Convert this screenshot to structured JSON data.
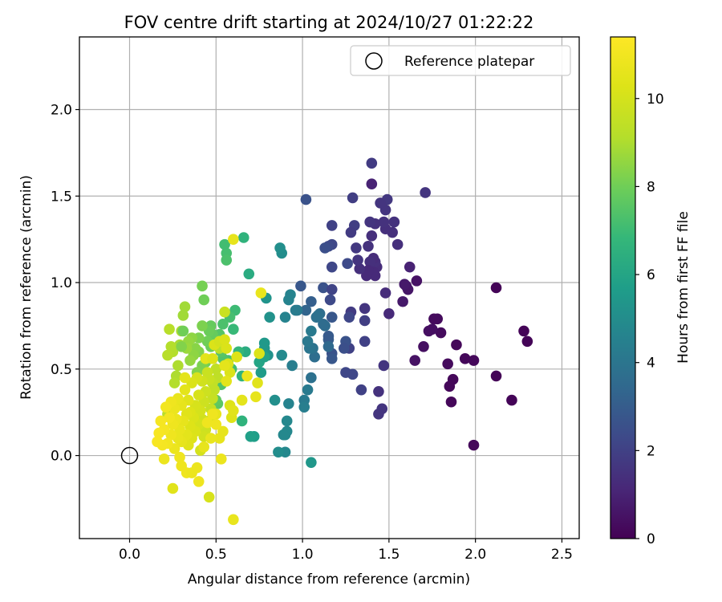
{
  "chart_data": {
    "type": "scatter",
    "title": "FOV centre drift starting at 2024/10/27 01:22:22",
    "xlabel": "Angular distance from reference (arcmin)",
    "ylabel": "Rotation from reference (arcmin)",
    "xlim": [
      -0.29,
      2.6
    ],
    "ylim": [
      -0.48,
      2.42
    ],
    "xticks": [
      "0.0",
      "0.5",
      "1.0",
      "1.5",
      "2.0",
      "2.5"
    ],
    "yticks": [
      "0.0",
      "0.5",
      "1.0",
      "1.5",
      "2.0"
    ],
    "grid": true,
    "legend": {
      "position": "top-right",
      "label": "Reference platepar"
    },
    "reference_point": {
      "x": 0.0,
      "y": 0.0
    },
    "colorbar": {
      "label": "Hours from first FF file",
      "min": 0,
      "max": 11.4,
      "ticks": [
        "0",
        "2",
        "4",
        "6",
        "8",
        "10"
      ],
      "colormap": "viridis"
    },
    "points": [
      [
        2.3,
        0.66,
        0.1
      ],
      [
        2.28,
        0.72,
        0.1
      ],
      [
        2.21,
        0.32,
        0.1
      ],
      [
        2.12,
        0.97,
        0.1
      ],
      [
        2.12,
        0.46,
        0.1
      ],
      [
        1.99,
        0.55,
        0.2
      ],
      [
        1.99,
        0.06,
        0.2
      ],
      [
        1.94,
        0.56,
        0.2
      ],
      [
        1.89,
        0.64,
        0.2
      ],
      [
        1.87,
        0.44,
        0.2
      ],
      [
        1.86,
        0.31,
        0.2
      ],
      [
        1.85,
        0.4,
        0.2
      ],
      [
        1.84,
        0.53,
        0.3
      ],
      [
        1.8,
        0.71,
        0.3
      ],
      [
        1.78,
        0.79,
        0.3
      ],
      [
        1.76,
        0.79,
        0.3
      ],
      [
        1.75,
        0.73,
        0.4
      ],
      [
        1.73,
        0.72,
        0.4
      ],
      [
        1.7,
        0.63,
        0.4
      ],
      [
        1.66,
        1.01,
        0.5
      ],
      [
        1.65,
        0.55,
        0.5
      ],
      [
        1.61,
        0.96,
        0.6
      ],
      [
        1.6,
        0.98,
        0.6
      ],
      [
        1.59,
        0.99,
        0.7
      ],
      [
        1.58,
        0.89,
        0.7
      ],
      [
        1.62,
        1.09,
        1.0
      ],
      [
        1.71,
        1.52,
        1.6
      ],
      [
        1.55,
        1.22,
        1.4
      ],
      [
        1.53,
        1.35,
        1.5
      ],
      [
        1.52,
        1.29,
        1.4
      ],
      [
        1.5,
        0.82,
        1.2
      ],
      [
        1.49,
        1.48,
        1.7
      ],
      [
        1.48,
        1.42,
        1.6
      ],
      [
        1.48,
        1.31,
        1.4
      ],
      [
        1.48,
        0.94,
        1.3
      ],
      [
        1.47,
        0.52,
        1.6
      ],
      [
        1.47,
        1.35,
        1.5
      ],
      [
        1.46,
        0.27,
        1.6
      ],
      [
        1.45,
        1.46,
        1.6
      ],
      [
        1.44,
        0.24,
        1.6
      ],
      [
        1.44,
        0.37,
        1.5
      ],
      [
        1.43,
        1.09,
        1.3
      ],
      [
        1.42,
        1.12,
        1.4
      ],
      [
        1.42,
        1.04,
        1.2
      ],
      [
        1.42,
        1.34,
        1.5
      ],
      [
        1.41,
        1.14,
        1.3
      ],
      [
        1.41,
        1.06,
        1.2
      ],
      [
        1.4,
        1.69,
        1.8
      ],
      [
        1.4,
        1.57,
        1.0
      ],
      [
        1.4,
        1.27,
        1.4
      ],
      [
        1.39,
        1.12,
        1.4
      ],
      [
        1.39,
        1.35,
        1.6
      ],
      [
        1.38,
        1.07,
        1.2
      ],
      [
        1.38,
        1.21,
        1.5
      ],
      [
        1.37,
        1.04,
        1.2
      ],
      [
        1.36,
        0.85,
        1.6
      ],
      [
        1.36,
        0.66,
        2.0
      ],
      [
        1.36,
        0.78,
        1.9
      ],
      [
        1.34,
        0.38,
        2.0
      ],
      [
        1.33,
        1.08,
        1.4
      ],
      [
        1.32,
        1.13,
        1.6
      ],
      [
        1.31,
        1.2,
        1.7
      ],
      [
        1.3,
        1.33,
        1.9
      ],
      [
        1.29,
        1.49,
        1.9
      ],
      [
        1.29,
        0.47,
        2.2
      ],
      [
        1.28,
        1.29,
        1.8
      ],
      [
        1.28,
        0.83,
        1.8
      ],
      [
        1.27,
        0.8,
        2.2
      ],
      [
        1.27,
        0.62,
        2.0
      ],
      [
        1.26,
        1.11,
        2.3
      ],
      [
        1.25,
        0.66,
        2.6
      ],
      [
        1.25,
        0.48,
        2.2
      ],
      [
        1.24,
        0.62,
        2.5
      ],
      [
        1.17,
        1.33,
        2.0
      ],
      [
        1.17,
        1.09,
        2.2
      ],
      [
        1.17,
        1.22,
        2.2
      ],
      [
        1.15,
        1.21,
        2.3
      ],
      [
        1.13,
        1.2,
        2.5
      ],
      [
        1.12,
        0.97,
        2.6
      ],
      [
        1.17,
        0.96,
        2.1
      ],
      [
        1.17,
        0.8,
        2.8
      ],
      [
        1.16,
        0.9,
        2.3
      ],
      [
        1.15,
        0.67,
        3.0
      ],
      [
        1.15,
        0.69,
        2.9
      ],
      [
        1.17,
        0.59,
        2.6
      ],
      [
        1.17,
        0.56,
        2.8
      ],
      [
        1.05,
        0.89,
        3.1
      ],
      [
        1.02,
        1.48,
        2.6
      ],
      [
        1.02,
        0.84,
        3.3
      ],
      [
        0.99,
        0.98,
        2.8
      ],
      [
        1.15,
        0.63,
        3.5
      ],
      [
        1.13,
        0.75,
        3.6
      ],
      [
        1.12,
        0.76,
        3.6
      ],
      [
        1.1,
        0.82,
        3.7
      ],
      [
        1.09,
        0.81,
        3.8
      ],
      [
        1.08,
        0.8,
        3.8
      ],
      [
        1.07,
        0.57,
        3.7
      ],
      [
        1.06,
        0.62,
        3.9
      ],
      [
        1.05,
        0.45,
        3.8
      ],
      [
        1.05,
        0.72,
        4.2
      ],
      [
        1.04,
        0.62,
        4.0
      ],
      [
        1.03,
        0.66,
        4.1
      ],
      [
        1.03,
        0.38,
        4.2
      ],
      [
        1.01,
        0.32,
        4.2
      ],
      [
        1.01,
        0.28,
        4.4
      ],
      [
        0.97,
        0.84,
        4.1
      ],
      [
        0.96,
        0.84,
        4.3
      ],
      [
        0.94,
        0.52,
        4.4
      ],
      [
        0.93,
        0.93,
        4.6
      ],
      [
        0.92,
        0.9,
        4.6
      ],
      [
        0.92,
        0.3,
        4.6
      ],
      [
        0.9,
        0.8,
        4.6
      ],
      [
        0.9,
        0.12,
        4.8
      ],
      [
        0.9,
        0.02,
        4.8
      ],
      [
        0.91,
        0.2,
        4.8
      ],
      [
        0.91,
        0.14,
        4.8
      ],
      [
        0.89,
        0.12,
        4.8
      ],
      [
        0.88,
        0.58,
        4.9
      ],
      [
        0.88,
        1.17,
        5.0
      ],
      [
        0.87,
        1.2,
        5.1
      ],
      [
        0.86,
        0.02,
        5.0
      ],
      [
        0.84,
        0.32,
        5.1
      ],
      [
        0.81,
        0.8,
        5.2
      ],
      [
        0.8,
        0.58,
        5.2
      ],
      [
        0.79,
        0.91,
        5.3
      ],
      [
        0.78,
        0.62,
        5.4
      ],
      [
        0.78,
        0.65,
        5.5
      ],
      [
        0.76,
        0.48,
        5.6
      ],
      [
        0.72,
        0.11,
        5.7
      ],
      [
        0.7,
        0.11,
        5.8
      ],
      [
        0.75,
        0.54,
        6.0
      ],
      [
        0.78,
        0.57,
        5.9
      ],
      [
        1.05,
        -0.04,
        5.4
      ],
      [
        0.69,
        1.05,
        6.3
      ],
      [
        0.67,
        0.6,
        6.3
      ],
      [
        0.66,
        1.26,
        6.6
      ],
      [
        0.65,
        0.46,
        6.6
      ],
      [
        0.65,
        0.2,
        6.6
      ],
      [
        0.63,
        0.6,
        6.8
      ],
      [
        0.61,
        0.84,
        7.0
      ],
      [
        0.6,
        0.73,
        6.9
      ],
      [
        0.59,
        0.5,
        7.1
      ],
      [
        0.58,
        0.8,
        7.2
      ],
      [
        0.57,
        0.55,
        7.2
      ],
      [
        0.56,
        1.17,
        7.2
      ],
      [
        0.56,
        1.13,
        7.3
      ],
      [
        0.55,
        1.22,
        7.1
      ],
      [
        0.54,
        0.76,
        7.3
      ],
      [
        0.54,
        0.56,
        7.4
      ],
      [
        0.53,
        0.41,
        7.4
      ],
      [
        0.53,
        0.6,
        7.5
      ],
      [
        0.52,
        0.7,
        7.5
      ],
      [
        0.51,
        0.3,
        7.6
      ],
      [
        0.5,
        0.32,
        7.7
      ],
      [
        0.49,
        0.24,
        7.7
      ],
      [
        0.48,
        0.7,
        7.8
      ],
      [
        0.47,
        0.63,
        7.9
      ],
      [
        0.47,
        0.75,
        7.8
      ],
      [
        0.46,
        0.72,
        7.9
      ],
      [
        0.45,
        0.66,
        8.0
      ],
      [
        0.44,
        0.54,
        8.0
      ],
      [
        0.43,
        0.9,
        8.0
      ],
      [
        0.42,
        0.98,
        8.1
      ],
      [
        0.42,
        0.75,
        8.2
      ],
      [
        0.42,
        0.52,
        8.2
      ],
      [
        0.4,
        0.68,
        8.2
      ],
      [
        0.4,
        0.6,
        8.3
      ],
      [
        0.39,
        0.48,
        8.3
      ],
      [
        0.38,
        0.62,
        8.4
      ],
      [
        0.37,
        0.58,
        8.5
      ],
      [
        0.36,
        0.68,
        8.5
      ],
      [
        0.35,
        0.55,
        8.6
      ],
      [
        0.34,
        0.66,
        8.6
      ],
      [
        0.33,
        0.62,
        8.7
      ],
      [
        0.32,
        0.86,
        8.8
      ],
      [
        0.31,
        0.81,
        8.8
      ],
      [
        0.3,
        0.72,
        8.9
      ],
      [
        0.29,
        0.64,
        8.9
      ],
      [
        0.28,
        0.52,
        9.0
      ],
      [
        0.27,
        0.46,
        9.0
      ],
      [
        0.26,
        0.42,
        9.1
      ],
      [
        0.25,
        0.6,
        9.1
      ],
      [
        0.24,
        0.63,
        9.1
      ],
      [
        0.23,
        0.73,
        9.2
      ],
      [
        0.22,
        0.58,
        9.2
      ],
      [
        0.22,
        0.24,
        9.2
      ],
      [
        0.31,
        0.72,
        8.0
      ],
      [
        0.3,
        0.63,
        8.3
      ],
      [
        0.52,
        0.62,
        9.3
      ],
      [
        0.51,
        0.45,
        9.4
      ],
      [
        0.5,
        0.5,
        9.4
      ],
      [
        0.49,
        0.38,
        9.5
      ],
      [
        0.48,
        0.42,
        9.5
      ],
      [
        0.48,
        0.33,
        9.6
      ],
      [
        0.47,
        0.27,
        9.6
      ],
      [
        0.46,
        0.44,
        9.7
      ],
      [
        0.46,
        0.2,
        9.7
      ],
      [
        0.45,
        0.48,
        9.7
      ],
      [
        0.44,
        0.15,
        9.8
      ],
      [
        0.44,
        0.37,
        9.8
      ],
      [
        0.43,
        0.31,
        9.8
      ],
      [
        0.43,
        0.11,
        9.9
      ],
      [
        0.42,
        0.43,
        9.9
      ],
      [
        0.42,
        0.21,
        9.9
      ],
      [
        0.41,
        0.26,
        10.0
      ],
      [
        0.41,
        0.03,
        10.0
      ],
      [
        0.4,
        0.18,
        10.0
      ],
      [
        0.4,
        0.35,
        10.1
      ],
      [
        0.39,
        0.45,
        10.1
      ],
      [
        0.38,
        0.29,
        10.1
      ],
      [
        0.38,
        0.14,
        10.2
      ],
      [
        0.37,
        0.22,
        10.2
      ],
      [
        0.36,
        0.42,
        10.2
      ],
      [
        0.36,
        0.1,
        10.3
      ],
      [
        0.35,
        0.25,
        10.3
      ],
      [
        0.35,
        0.17,
        10.3
      ],
      [
        0.34,
        0.32,
        10.4
      ],
      [
        0.34,
        0.06,
        10.4
      ],
      [
        0.33,
        0.24,
        10.4
      ],
      [
        0.33,
        0.12,
        10.5
      ],
      [
        0.32,
        0.38,
        10.5
      ],
      [
        0.32,
        0.45,
        10.5
      ],
      [
        0.31,
        0.2,
        10.6
      ],
      [
        0.3,
        0.08,
        10.6
      ],
      [
        0.3,
        0.29,
        10.6
      ],
      [
        0.29,
        0.15,
        10.7
      ],
      [
        0.28,
        0.33,
        10.7
      ],
      [
        0.28,
        0.1,
        10.7
      ],
      [
        0.27,
        0.21,
        10.8
      ],
      [
        0.26,
        0.27,
        10.8
      ],
      [
        0.26,
        0.04,
        10.8
      ],
      [
        0.25,
        0.18,
        10.9
      ],
      [
        0.24,
        0.31,
        10.9
      ],
      [
        0.24,
        0.12,
        10.9
      ],
      [
        0.23,
        0.22,
        11.0
      ],
      [
        0.22,
        0.07,
        11.0
      ],
      [
        0.21,
        0.28,
        11.0
      ],
      [
        0.2,
        0.15,
        11.1
      ],
      [
        0.19,
        0.06,
        11.1
      ],
      [
        0.18,
        0.2,
        11.1
      ],
      [
        0.17,
        0.13,
        11.2
      ],
      [
        0.16,
        0.08,
        11.2
      ],
      [
        0.29,
        -0.01,
        10.9
      ],
      [
        0.3,
        -0.06,
        10.9
      ],
      [
        0.33,
        -0.1,
        10.9
      ],
      [
        0.36,
        -0.1,
        10.8
      ],
      [
        0.39,
        -0.07,
        10.8
      ],
      [
        0.4,
        -0.15,
        10.9
      ],
      [
        0.43,
        0.05,
        10.6
      ],
      [
        0.44,
        0.56,
        10.5
      ],
      [
        0.48,
        0.56,
        10.3
      ],
      [
        0.49,
        0.64,
        10.2
      ],
      [
        0.52,
        0.66,
        10.0
      ],
      [
        0.55,
        0.83,
        9.7
      ],
      [
        0.55,
        0.67,
        10.2
      ],
      [
        0.56,
        0.62,
        10.2
      ],
      [
        0.57,
        0.53,
        10.2
      ],
      [
        0.58,
        0.48,
        10.2
      ],
      [
        0.58,
        0.29,
        10.3
      ],
      [
        0.59,
        0.22,
        10.3
      ],
      [
        0.6,
        0.26,
        10.4
      ],
      [
        0.54,
        0.14,
        10.6
      ],
      [
        0.52,
        0.1,
        10.6
      ],
      [
        0.5,
        0.24,
        10.6
      ],
      [
        0.46,
        -0.24,
        10.1
      ],
      [
        0.53,
        -0.02,
        10.8
      ],
      [
        0.6,
        1.25,
        10.6
      ],
      [
        0.6,
        -0.37,
        10.7
      ],
      [
        0.47,
        0.1,
        10.7
      ],
      [
        0.5,
        0.18,
        10.9
      ],
      [
        0.45,
        0.19,
        10.9
      ],
      [
        0.48,
        0.24,
        10.9
      ],
      [
        0.2,
        -0.02,
        10.8
      ],
      [
        0.25,
        -0.19,
        10.4
      ],
      [
        0.73,
        0.34,
        10.6
      ],
      [
        0.74,
        0.42,
        10.4
      ],
      [
        0.75,
        0.59,
        10.2
      ],
      [
        0.76,
        0.94,
        10.7
      ],
      [
        0.55,
        0.52,
        10.5
      ],
      [
        0.56,
        0.43,
        10.5
      ],
      [
        0.62,
        0.57,
        10.3
      ],
      [
        0.65,
        0.32,
        10.5
      ],
      [
        0.68,
        0.46,
        10.8
      ]
    ]
  }
}
